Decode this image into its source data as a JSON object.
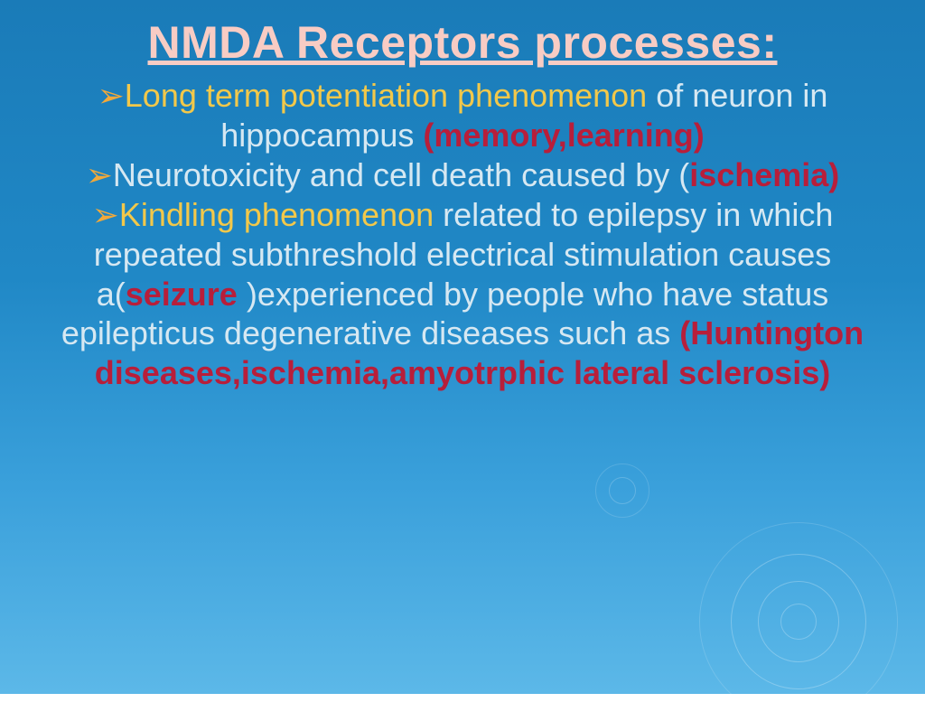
{
  "colors": {
    "title": "#f8ccc4",
    "body_light": "#d6e8f2",
    "highlight_yellow": "#f2c84a",
    "highlight_red": "#b81e3a",
    "bullet": "#f2a93a"
  },
  "title": "NMDA  Receptors processes:",
  "bullets": [
    {
      "segments": [
        {
          "text": "Long term potentiation phenomenon ",
          "color": "highlight_yellow",
          "bold": false
        },
        {
          "text": "of neuron in hippocampus ",
          "color": "body_light",
          "bold": false
        },
        {
          "text": "(memory,learning)",
          "color": "highlight_red",
          "bold": true
        }
      ]
    },
    {
      "segments": [
        {
          "text": "Neurotoxicity and cell death caused by (",
          "color": "body_light",
          "bold": false
        },
        {
          "text": "ischemia)",
          "color": "highlight_red",
          "bold": true
        }
      ]
    },
    {
      "segments": [
        {
          "text": "Kindling phenomenon ",
          "color": "highlight_yellow",
          "bold": false
        },
        {
          "text": "related to epilepsy in which repeated subthreshold electrical stimulation causes a(",
          "color": "body_light",
          "bold": false
        },
        {
          "text": "seizure ",
          "color": "highlight_red",
          "bold": true
        },
        {
          "text": ")experienced by people who have status epilepticus degenerative diseases such as ",
          "color": "body_light",
          "bold": false
        },
        {
          "text": "(Huntington diseases,ischemia,amyotrphic lateral sclerosis)",
          "color": "highlight_red",
          "bold": true
        }
      ]
    }
  ]
}
